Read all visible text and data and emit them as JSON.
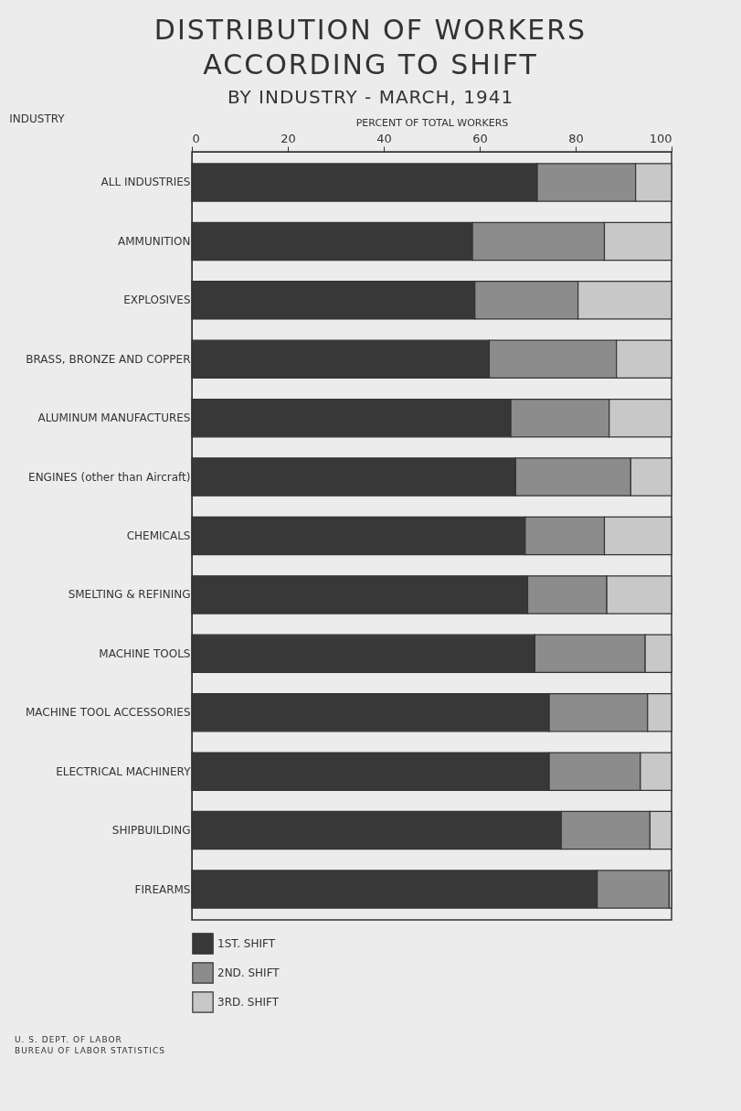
{
  "chart_data": {
    "type": "bar",
    "orientation": "horizontal",
    "stacked": true,
    "title": "DISTRIBUTION OF WORKERS ACCORDING TO SHIFT",
    "subtitle": "BY INDUSTRY - MARCH, 1941",
    "xlabel": "PERCENT OF TOTAL WORKERS",
    "ylabel": "INDUSTRY",
    "categories": [
      "ALL INDUSTRIES",
      "AMMUNITION",
      "EXPLOSIVES",
      "BRASS, BRONZE AND COPPER",
      "ALUMINUM MANUFACTURES",
      "ENGINES (other than Aircraft)",
      "CHEMICALS",
      "SMELTING & REFINING",
      "MACHINE TOOLS",
      "MACHINE TOOL ACCESSORIES",
      "ELECTRICAL MACHINERY",
      "SHIPBUILDING",
      "FIREARMS"
    ],
    "series": [
      {
        "name": "1ST. SHIFT",
        "color": "#383838",
        "values": [
          72,
          58.5,
          59,
          62,
          66.5,
          67.5,
          69.5,
          70,
          71.5,
          74.5,
          74.5,
          77,
          84.5
        ]
      },
      {
        "name": "2ND. SHIFT",
        "color": "#8c8c8c",
        "values": [
          20.5,
          27.5,
          21.5,
          26.5,
          20.5,
          24,
          16.5,
          16.5,
          23,
          20.5,
          19,
          18.5,
          15
        ]
      },
      {
        "name": "3RD. SHIFT",
        "color": "#c8c8c8",
        "values": [
          7.5,
          14,
          19.5,
          11.5,
          13,
          8.5,
          14,
          13.5,
          5.5,
          5,
          6.5,
          4.5,
          0.5
        ]
      }
    ],
    "xlim": [
      0,
      100
    ],
    "xticks": [
      0,
      20,
      40,
      60,
      80,
      100
    ],
    "grid": false,
    "legend": "bottom",
    "annotations": [
      "U. S. DEPT. OF LABOR",
      "BUREAU OF LABOR STATISTICS"
    ]
  }
}
